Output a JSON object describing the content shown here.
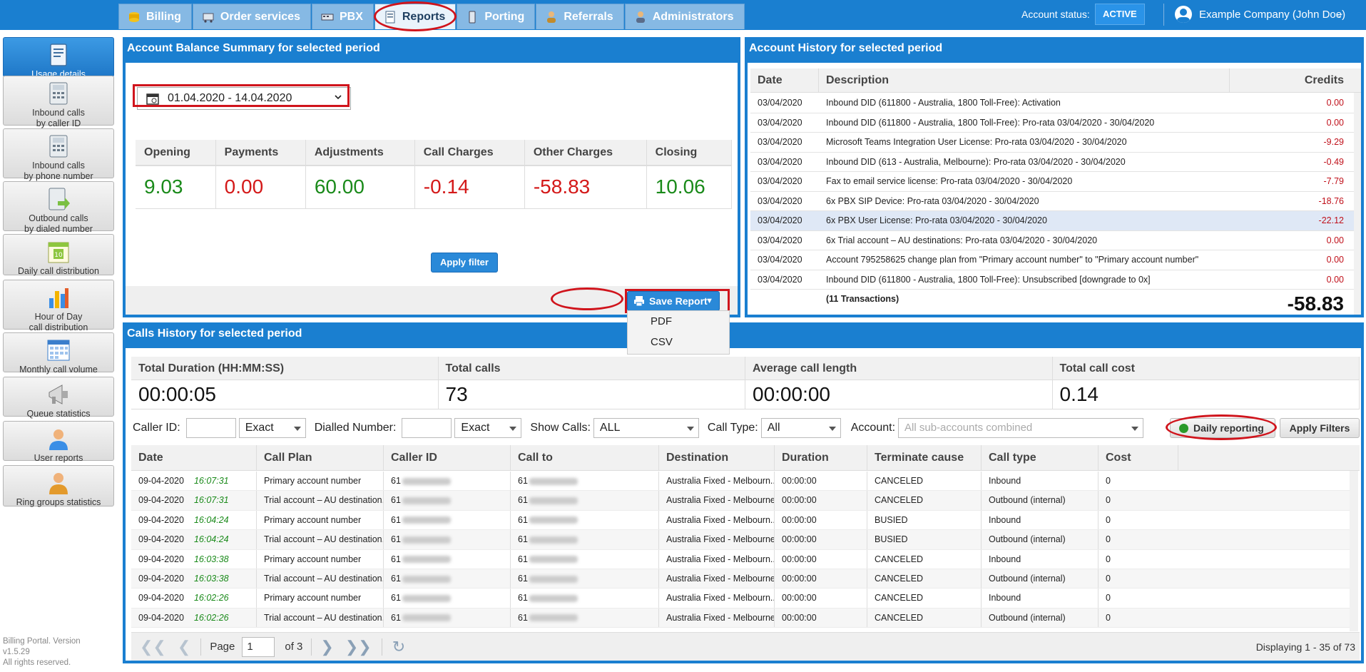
{
  "nav": {
    "tabs": [
      {
        "label": "Billing",
        "icon": "coins-icon"
      },
      {
        "label": "Order services",
        "icon": "cart-icon"
      },
      {
        "label": "PBX",
        "icon": "pbx-icon"
      },
      {
        "label": "Reports",
        "icon": "reports-icon",
        "active": true
      },
      {
        "label": "Porting",
        "icon": "phone-icon"
      },
      {
        "label": "Referrals",
        "icon": "person-icon"
      },
      {
        "label": "Administrators",
        "icon": "admin-icon"
      }
    ],
    "account_status_label": "Account status:",
    "account_status_value": "ACTIVE",
    "user_name": "Example Company (John Doe)"
  },
  "sidebar": {
    "items": [
      {
        "label1": "Usage details",
        "label2": "",
        "icon": "notebook-icon"
      },
      {
        "label1": "Inbound calls",
        "label2": "by caller ID",
        "icon": "desk-phone-icon"
      },
      {
        "label1": "Inbound calls",
        "label2": "by phone number",
        "icon": "desk-phone-icon"
      },
      {
        "label1": "Outbound calls",
        "label2": "by dialed number",
        "icon": "outbound-phone-icon"
      },
      {
        "label1": "Daily call distribution",
        "label2": "",
        "icon": "calendar-day-icon"
      },
      {
        "label1": "Hour of Day",
        "label2": "call distribution",
        "icon": "bar-chart-icon"
      },
      {
        "label1": "Monthly call volume",
        "label2": "",
        "icon": "calendar-grid-icon"
      },
      {
        "label1": "Queue statistics",
        "label2": "",
        "icon": "megaphone-icon"
      },
      {
        "label1": "User reports",
        "label2": "",
        "icon": "user-icon"
      },
      {
        "label1": "Ring groups statistics",
        "label2": "",
        "icon": "user-group-icon"
      }
    ],
    "footer": [
      "Billing Portal. Version",
      "v1.5.29",
      "All rights reserved."
    ]
  },
  "balance": {
    "title": "Account Balance Summary for selected period",
    "date_range": "01.04.2020 - 14.04.2020",
    "columns": [
      "Opening",
      "Payments",
      "Adjustments",
      "Call Charges",
      "Other Charges",
      "Closing"
    ],
    "values": [
      "9.03",
      "0.00",
      "60.00",
      "-0.14",
      "-58.83",
      "10.06"
    ],
    "apply_filter": "Apply filter",
    "save_report": "Save Report",
    "save_options": [
      "PDF",
      "CSV"
    ]
  },
  "history": {
    "title": "Account History for selected period",
    "columns": [
      "Date",
      "Description",
      "Credits"
    ],
    "rows": [
      {
        "date": "03/04/2020",
        "desc": "Inbound DID (611800 - Australia, 1800 Toll-Free): Activation",
        "credits": "0.00"
      },
      {
        "date": "03/04/2020",
        "desc": "Inbound DID (611800 - Australia, 1800 Toll-Free): Pro-rata 03/04/2020 - 30/04/2020",
        "credits": "0.00"
      },
      {
        "date": "03/04/2020",
        "desc": "Microsoft Teams Integration User License: Pro-rata 03/04/2020 - 30/04/2020",
        "credits": "-9.29"
      },
      {
        "date": "03/04/2020",
        "desc": "Inbound DID (613 - Australia, Melbourne): Pro-rata 03/04/2020 - 30/04/2020",
        "credits": "-0.49"
      },
      {
        "date": "03/04/2020",
        "desc": "Fax to email service license: Pro-rata 03/04/2020 - 30/04/2020",
        "credits": "-7.79"
      },
      {
        "date": "03/04/2020",
        "desc": "6x PBX SIP Device: Pro-rata 03/04/2020 - 30/04/2020",
        "credits": "-18.76"
      },
      {
        "date": "03/04/2020",
        "desc": "6x PBX User License: Pro-rata 03/04/2020 - 30/04/2020",
        "credits": "-22.12",
        "selected": true
      },
      {
        "date": "03/04/2020",
        "desc": "6x Trial account – AU destinations: Pro-rata 03/04/2020 - 30/04/2020",
        "credits": "0.00"
      },
      {
        "date": "03/04/2020",
        "desc": "Account 795258625 change plan from \"Primary account number\" to \"Primary account number\"",
        "credits": "0.00"
      },
      {
        "date": "03/04/2020",
        "desc": "Inbound DID (611800 - Australia, 1800 Toll-Free): Unsubscribed [downgrade to 0x]",
        "credits": "0.00"
      }
    ],
    "transactions": "(11 Transactions)",
    "total": "-58.83"
  },
  "calls": {
    "title": "Calls History for selected period",
    "stats": [
      {
        "label": "Total Duration (HH:MM:SS)",
        "value": "00:00:05"
      },
      {
        "label": "Total calls",
        "value": "73"
      },
      {
        "label": "Average call length",
        "value": "00:00:00"
      },
      {
        "label": "Total call cost",
        "value": "0.14"
      }
    ],
    "filters": {
      "caller_id_label": "Caller ID:",
      "caller_mode": "Exact",
      "dialled_label": "Dialled Number:",
      "dialled_mode": "Exact",
      "show_calls_label": "Show Calls:",
      "show_calls": "ALL",
      "call_type_label": "Call Type:",
      "call_type": "All",
      "account_label": "Account:",
      "account_placeholder": "All sub-accounts combined",
      "daily": "Daily reporting",
      "apply": "Apply Filters"
    },
    "columns": [
      "Date",
      "Call Plan",
      "Caller ID",
      "Call to",
      "Destination",
      "Duration",
      "Terminate cause",
      "Call type",
      "Cost"
    ],
    "rows": [
      {
        "date": "09-04-2020",
        "time": "16:07:31",
        "plan": "Primary account number",
        "caller": "61",
        "to": "61",
        "dest": "Australia Fixed - Melbourn...",
        "dur": "00:00:00",
        "cause": "CANCELED",
        "type": "Inbound",
        "cost": "0"
      },
      {
        "date": "09-04-2020",
        "time": "16:07:31",
        "plan": "Trial account – AU destination...",
        "caller": "61",
        "to": "61",
        "dest": "Australia Fixed - Melbourne",
        "dur": "00:00:00",
        "cause": "CANCELED",
        "type": "Outbound (internal)",
        "cost": "0"
      },
      {
        "date": "09-04-2020",
        "time": "16:04:24",
        "plan": "Primary account number",
        "caller": "61",
        "to": "61",
        "dest": "Australia Fixed - Melbourn...",
        "dur": "00:00:00",
        "cause": "BUSIED",
        "type": "Inbound",
        "cost": "0"
      },
      {
        "date": "09-04-2020",
        "time": "16:04:24",
        "plan": "Trial account – AU destination...",
        "caller": "61",
        "to": "61",
        "dest": "Australia Fixed - Melbourne",
        "dur": "00:00:00",
        "cause": "BUSIED",
        "type": "Outbound (internal)",
        "cost": "0"
      },
      {
        "date": "09-04-2020",
        "time": "16:03:38",
        "plan": "Primary account number",
        "caller": "61",
        "to": "61",
        "dest": "Australia Fixed - Melbourn...",
        "dur": "00:00:00",
        "cause": "CANCELED",
        "type": "Inbound",
        "cost": "0"
      },
      {
        "date": "09-04-2020",
        "time": "16:03:38",
        "plan": "Trial account – AU destination...",
        "caller": "61",
        "to": "61",
        "dest": "Australia Fixed - Melbourne",
        "dur": "00:00:00",
        "cause": "CANCELED",
        "type": "Outbound (internal)",
        "cost": "0"
      },
      {
        "date": "09-04-2020",
        "time": "16:02:26",
        "plan": "Primary account number",
        "caller": "61",
        "to": "61",
        "dest": "Australia Fixed - Melbourn...",
        "dur": "00:00:00",
        "cause": "CANCELED",
        "type": "Inbound",
        "cost": "0"
      },
      {
        "date": "09-04-2020",
        "time": "16:02:26",
        "plan": "Trial account – AU destination...",
        "caller": "61",
        "to": "61",
        "dest": "Australia Fixed - Melbourne",
        "dur": "00:00:00",
        "cause": "CANCELED",
        "type": "Outbound (internal)",
        "cost": "0"
      }
    ],
    "pager": {
      "page_label": "Page",
      "page": "1",
      "of": "of 3",
      "displaying": "Displaying 1 - 35 of 73"
    }
  }
}
